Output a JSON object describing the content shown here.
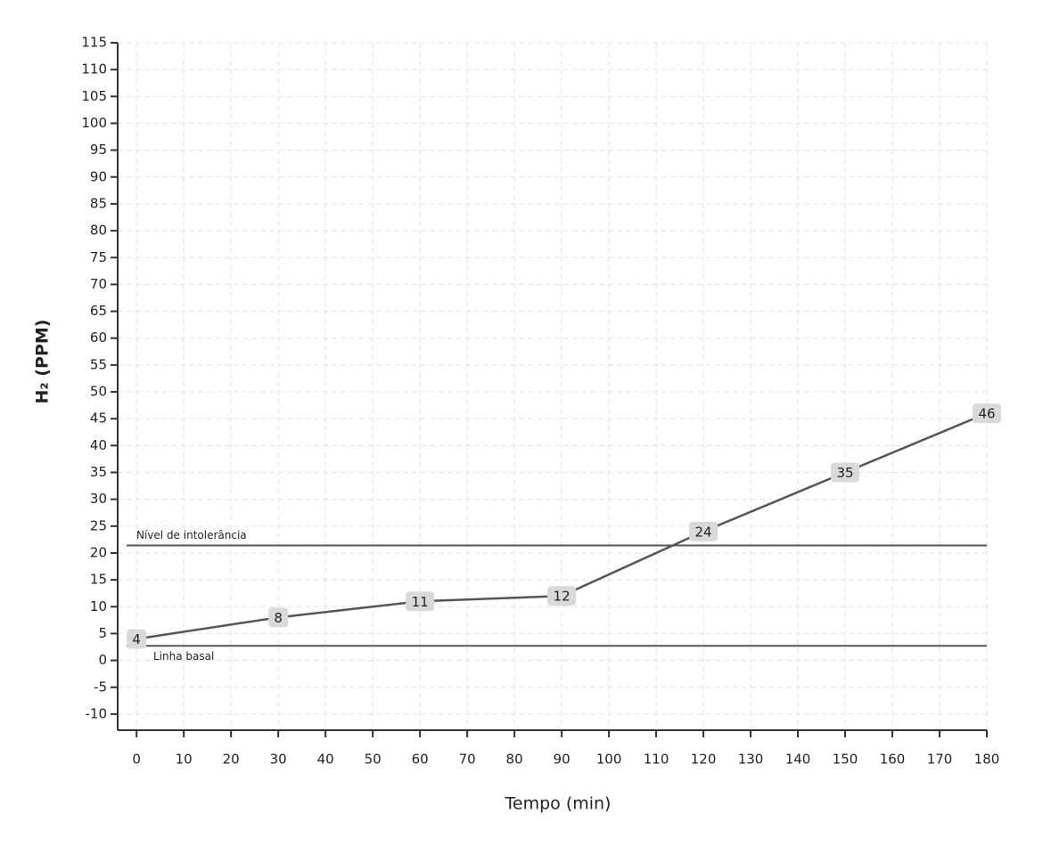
{
  "chart_data": {
    "type": "line",
    "x_label": "Tempo (min)",
    "y_label": "H₂ (PPM)",
    "x": [
      0,
      30,
      60,
      90,
      120,
      150,
      180
    ],
    "series": [
      {
        "color": "#555555",
        "values": [
          4,
          8,
          11,
          12,
          24,
          35,
          46
        ]
      }
    ],
    "xlim": [
      -4,
      180
    ],
    "xticks": [
      0,
      10,
      20,
      30,
      40,
      50,
      60,
      70,
      80,
      90,
      100,
      110,
      120,
      130,
      140,
      150,
      160,
      170,
      180
    ],
    "ylim": [
      -13,
      115
    ],
    "yticks": [
      -10,
      -5,
      0,
      5,
      10,
      15,
      20,
      25,
      30,
      35,
      40,
      45,
      50,
      55,
      60,
      65,
      70,
      75,
      80,
      85,
      90,
      95,
      100,
      105,
      110,
      115
    ],
    "grid": true,
    "reference_lines": [
      {
        "label": "Nível de intolerância",
        "value": 21.4,
        "label_position": "above"
      },
      {
        "label": "Linha basal",
        "value": 2.7,
        "label_position": "below"
      }
    ]
  }
}
